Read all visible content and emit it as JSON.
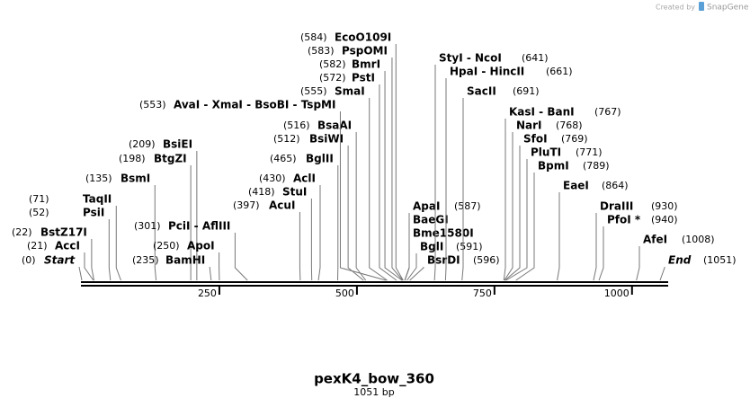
{
  "watermark": "Created by",
  "brand": "SnapGene",
  "title": "pexK4_bow_360",
  "subtitle": "1051 bp",
  "ruler": {
    "length": 1051,
    "ticks": [
      250,
      500,
      750,
      1000
    ]
  },
  "sites": [
    {
      "name": "Start",
      "position": 0,
      "position_label": "(0)",
      "italic": true
    },
    {
      "name": "AccI",
      "position": 21,
      "position_label": "(21)"
    },
    {
      "name": "BstZ17I",
      "position": 22,
      "position_label": "(22)"
    },
    {
      "name": "PsiI",
      "position": 52,
      "position_label": "(52)"
    },
    {
      "name": "TaqII",
      "position": 71,
      "position_label": "(71)"
    },
    {
      "name": "BsmI",
      "position": 135,
      "position_label": "(135)"
    },
    {
      "name": "BtgZI",
      "position": 198,
      "position_label": "(198)"
    },
    {
      "name": "BsiEI",
      "position": 209,
      "position_label": "(209)"
    },
    {
      "name": "BamHI",
      "position": 235,
      "position_label": "(235)"
    },
    {
      "name": "ApoI",
      "position": 250,
      "position_label": "(250)"
    },
    {
      "name": "PciI  - AflIII",
      "position": 301,
      "position_label": "(301)"
    },
    {
      "name": "AcuI",
      "position": 397,
      "position_label": "(397)"
    },
    {
      "name": "StuI",
      "position": 418,
      "position_label": "(418)"
    },
    {
      "name": "AclI",
      "position": 430,
      "position_label": "(430)"
    },
    {
      "name": "BglII",
      "position": 465,
      "position_label": "(465)"
    },
    {
      "name": "BsiWI",
      "position": 512,
      "position_label": "(512)"
    },
    {
      "name": "BsaAI",
      "position": 516,
      "position_label": "(516)"
    },
    {
      "name": "AvaI  - XmaI  - BsoBI  - TspMI",
      "position": 553,
      "position_label": "(553)"
    },
    {
      "name": "SmaI",
      "position": 555,
      "position_label": "(555)"
    },
    {
      "name": "PstI",
      "position": 572,
      "position_label": "(572)"
    },
    {
      "name": "BmrI",
      "position": 582,
      "position_label": "(582)"
    },
    {
      "name": "PspOMI",
      "position": 583,
      "position_label": "(583)"
    },
    {
      "name": "EcoO109I",
      "position": 584,
      "position_label": "(584)"
    },
    {
      "name": "ApaI",
      "position": 587,
      "position_label": "(587)"
    },
    {
      "name": "BaeGI",
      "position": 587
    },
    {
      "name": "Bme1580I",
      "position": 587
    },
    {
      "name": "BglI",
      "position": 591,
      "position_label": "(591)"
    },
    {
      "name": "BsrDI",
      "position": 596,
      "position_label": "(596)"
    },
    {
      "name": "StyI  - NcoI",
      "position": 641,
      "position_label": "(641)"
    },
    {
      "name": "HpaI  - HincII",
      "position": 661,
      "position_label": "(661)"
    },
    {
      "name": "SacII",
      "position": 691,
      "position_label": "(691)"
    },
    {
      "name": "KasI  - BanI",
      "position": 767,
      "position_label": "(767)"
    },
    {
      "name": "NarI",
      "position": 768,
      "position_label": "(768)"
    },
    {
      "name": "SfoI",
      "position": 769,
      "position_label": "(769)"
    },
    {
      "name": "PluTI",
      "position": 771,
      "position_label": "(771)"
    },
    {
      "name": "BpmI",
      "position": 789,
      "position_label": "(789)"
    },
    {
      "name": "EaeI",
      "position": 864,
      "position_label": "(864)"
    },
    {
      "name": "DraIII",
      "position": 930,
      "position_label": "(930)"
    },
    {
      "name": "PfoI *",
      "position": 940,
      "position_label": "(940)"
    },
    {
      "name": "AfeI",
      "position": 1008,
      "position_label": "(1008)"
    },
    {
      "name": "End",
      "position": 1051,
      "position_label": "(1051)",
      "italic": true
    }
  ]
}
